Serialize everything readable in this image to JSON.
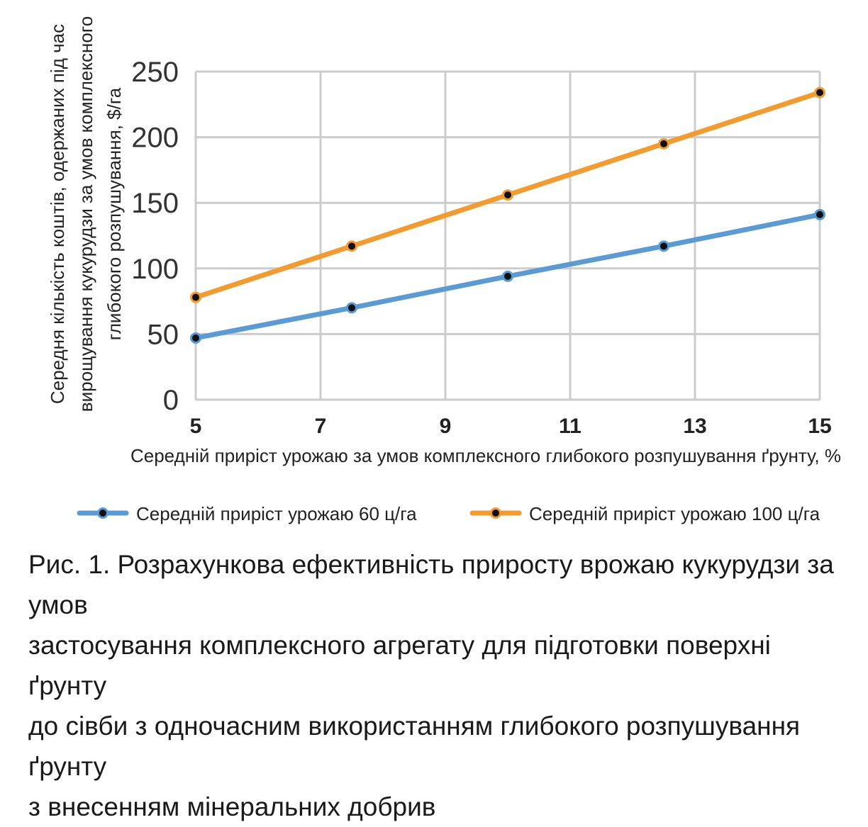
{
  "chart_data": {
    "type": "line",
    "ylabel_lines": [
      "Середня кількість коштів, одержаних під час",
      "вирощування кукурудзи за умов комплексного",
      "глибокого розпушування,  $/га"
    ],
    "xlabel": "Середній приріст урожаю за умов комплексного глибокого розпушування ґрунту, %",
    "x_ticks": [
      5,
      7,
      9,
      11,
      13,
      15
    ],
    "y_ticks": [
      0,
      50,
      100,
      150,
      200,
      250
    ],
    "xlim": [
      5,
      15
    ],
    "ylim": [
      0,
      250
    ],
    "grid": true,
    "legend_position": "bottom",
    "x": [
      5,
      7.5,
      10,
      12.5,
      15
    ],
    "series": [
      {
        "name": "Середній приріст урожаю 60 ц/га",
        "color": "#5b9bd5",
        "values": [
          47,
          70,
          94,
          117,
          141
        ]
      },
      {
        "name": "Середній приріст урожаю 100 ц/га",
        "color": "#f39b2e",
        "values": [
          78,
          117,
          156,
          195,
          234
        ]
      }
    ]
  },
  "caption_lines": [
    "Рис. 1. Розрахункова ефективність приросту врожаю кукурудзи за умов",
    "застосування комплексного агрегату для підготовки поверхні ґрунту",
    "до сівби з одночасним використанням глибокого розпушування ґрунту",
    "з внесенням мінеральних добрив"
  ]
}
